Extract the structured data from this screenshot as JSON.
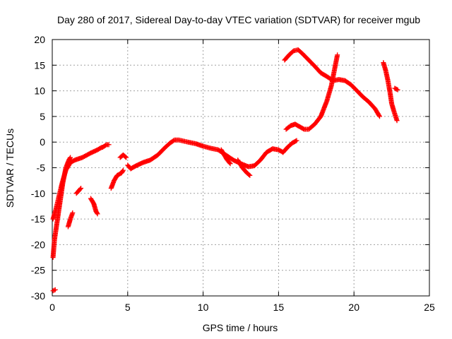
{
  "chart_data": {
    "type": "scatter",
    "title": "Day 280 of 2017, Sidereal Day-to-day VTEC variation (SDTVAR) for receiver mgub",
    "xlabel": "GPS time / hours",
    "ylabel": "SDTVAR / TECUs",
    "xlim": [
      0,
      25
    ],
    "ylim": [
      -30,
      20
    ],
    "xticks": [
      0,
      5,
      10,
      15,
      20,
      25
    ],
    "yticks": [
      -30,
      -25,
      -20,
      -15,
      -10,
      -5,
      0,
      5,
      10,
      15,
      20
    ],
    "xtick_labels": [
      "0",
      "5",
      "10",
      "15",
      "20",
      "25"
    ],
    "ytick_labels": [
      "-30",
      "-25",
      "-20",
      "-15",
      "-10",
      "-5",
      "0",
      "5",
      "10",
      "15",
      "20"
    ],
    "grid": true,
    "marker": "plus",
    "colors": {
      "points": "#ff0000",
      "grid": "#a0a0a0",
      "axes": "#000000"
    },
    "series": [
      {
        "points": [
          [
            0.05,
            -22.5
          ],
          [
            0.15,
            -19
          ],
          [
            0.3,
            -16
          ],
          [
            0.5,
            -12
          ],
          [
            0.7,
            -8
          ],
          [
            0.9,
            -5
          ],
          [
            1.1,
            -3.5
          ],
          [
            1.2,
            -3
          ]
        ]
      },
      {
        "points": [
          [
            0.05,
            -15
          ],
          [
            0.25,
            -13
          ],
          [
            0.45,
            -10.5
          ],
          [
            0.65,
            -8
          ],
          [
            0.9,
            -5.5
          ],
          [
            1.2,
            -4
          ]
        ]
      },
      {
        "points": [
          [
            0.05,
            -29
          ],
          [
            0.2,
            -28.8
          ]
        ]
      },
      {
        "points": [
          [
            1.05,
            -16.5
          ],
          [
            1.2,
            -15
          ],
          [
            1.35,
            -13.8
          ]
        ]
      },
      {
        "points": [
          [
            1.6,
            -10
          ],
          [
            1.75,
            -9.5
          ],
          [
            1.9,
            -9
          ]
        ]
      },
      {
        "points": [
          [
            1.2,
            -4
          ],
          [
            1.5,
            -3.5
          ],
          [
            2,
            -3
          ],
          [
            2.5,
            -2.2
          ],
          [
            3,
            -1.5
          ],
          [
            3.3,
            -1
          ]
        ]
      },
      {
        "points": [
          [
            2.55,
            -11
          ],
          [
            2.75,
            -12
          ],
          [
            2.9,
            -13.5
          ],
          [
            3.0,
            -14
          ]
        ]
      },
      {
        "points": [
          [
            3.35,
            -1
          ],
          [
            3.6,
            -0.5
          ],
          [
            3.75,
            -0.5
          ]
        ]
      },
      {
        "points": [
          [
            3.9,
            -9
          ],
          [
            4.1,
            -7.5
          ],
          [
            4.3,
            -6.5
          ],
          [
            4.6,
            -6
          ],
          [
            4.7,
            -5.5
          ]
        ]
      },
      {
        "points": [
          [
            4.5,
            -3
          ],
          [
            4.7,
            -2.5
          ],
          [
            4.9,
            -3
          ]
        ]
      },
      {
        "points": [
          [
            5.0,
            -4.5
          ],
          [
            5.2,
            -5.2
          ],
          [
            5.5,
            -4.7
          ],
          [
            6.0,
            -4
          ],
          [
            6.5,
            -3.5
          ],
          [
            7,
            -2.5
          ],
          [
            7.5,
            -1
          ],
          [
            7.8,
            -0.2
          ],
          [
            8.1,
            0.4
          ],
          [
            8.4,
            0.4
          ],
          [
            8.7,
            0.2
          ],
          [
            9,
            0
          ],
          [
            9.5,
            -0.3
          ],
          [
            10,
            -0.8
          ],
          [
            10.5,
            -1.2
          ],
          [
            11,
            -1.5
          ],
          [
            11.5,
            -2.5
          ],
          [
            12,
            -3.5
          ],
          [
            12.5,
            -4.2
          ],
          [
            13,
            -4.8
          ],
          [
            13.4,
            -4.6
          ],
          [
            13.8,
            -3.5
          ],
          [
            14.2,
            -2
          ],
          [
            14.6,
            -1.3
          ],
          [
            15,
            -1.5
          ],
          [
            15.3,
            -2
          ]
        ]
      },
      {
        "points": [
          [
            11.2,
            -1.5
          ],
          [
            11.4,
            -2.5
          ],
          [
            11.6,
            -3.5
          ],
          [
            11.8,
            -4.2
          ]
        ]
      },
      {
        "points": [
          [
            12.3,
            -3.5
          ],
          [
            12.6,
            -5
          ],
          [
            12.9,
            -6
          ],
          [
            13.1,
            -6.5
          ]
        ]
      },
      {
        "points": [
          [
            15.3,
            -2
          ],
          [
            15.6,
            -1
          ],
          [
            15.9,
            -0.2
          ],
          [
            16.2,
            0.3
          ]
        ]
      },
      {
        "points": [
          [
            15.4,
            16
          ],
          [
            15.7,
            17
          ],
          [
            16,
            17.8
          ],
          [
            16.3,
            18
          ],
          [
            16.6,
            17.2
          ],
          [
            17,
            16
          ],
          [
            17.4,
            14.8
          ],
          [
            17.8,
            13.5
          ],
          [
            18.2,
            12.8
          ],
          [
            18.6,
            12
          ],
          [
            19,
            12.2
          ],
          [
            19.4,
            12
          ],
          [
            19.8,
            11.2
          ],
          [
            20.2,
            10
          ],
          [
            20.6,
            8.8
          ],
          [
            21,
            7.8
          ],
          [
            21.4,
            6.5
          ],
          [
            21.7,
            5
          ]
        ]
      },
      {
        "points": [
          [
            15.5,
            2.5
          ],
          [
            15.8,
            3.2
          ],
          [
            16.1,
            3.5
          ],
          [
            16.4,
            3
          ],
          [
            16.7,
            2.5
          ],
          [
            17,
            2.5
          ],
          [
            17.4,
            3.5
          ],
          [
            17.8,
            5
          ],
          [
            18.2,
            8
          ],
          [
            18.5,
            11
          ],
          [
            18.7,
            14
          ],
          [
            18.9,
            17
          ]
        ]
      },
      {
        "points": [
          [
            21.95,
            15.5
          ],
          [
            22.1,
            14
          ],
          [
            22.25,
            12
          ],
          [
            22.4,
            9.5
          ],
          [
            22.5,
            7.5
          ],
          [
            22.65,
            6
          ],
          [
            22.85,
            4.2
          ]
        ]
      },
      {
        "points": [
          [
            22.7,
            10.5
          ],
          [
            22.9,
            10.2
          ]
        ]
      }
    ]
  }
}
